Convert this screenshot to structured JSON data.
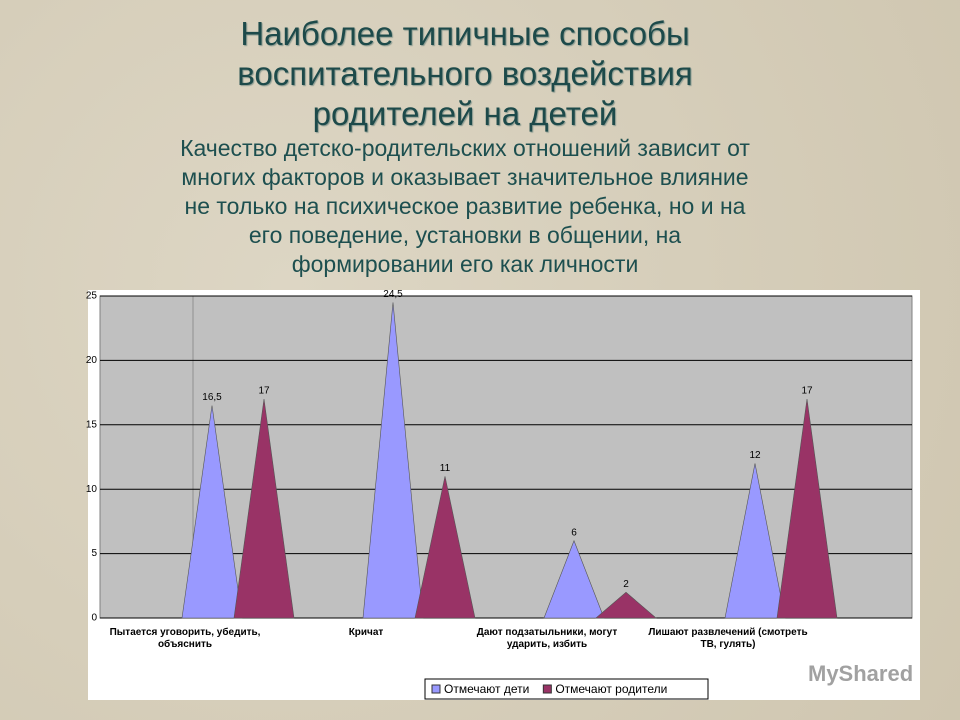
{
  "chart_data": {
    "type": "cone",
    "title": [
      "Наиболее типичные способы",
      "воспитательного воздействия",
      "родителей на детей"
    ],
    "subtitle": [
      "Качество детско-родительских отношений зависит от",
      "многих факторов и оказывает значительное влияние",
      "не только на психическое развитие ребенка, но и на",
      "его поведение, установки в общении, на",
      "формировании его как личности"
    ],
    "categories": [
      "Пытается уговорить, убедить, объяснить",
      "Кричат",
      "Дают подзатыльники, могут ударить, избить",
      "Лишают развлечений (смотреть ТВ, гулять)"
    ],
    "series": [
      {
        "name": "Отмечают дети",
        "color": "#9999ff",
        "values": [
          16.5,
          24.5,
          6,
          12
        ],
        "value_labels": [
          "16,5",
          "24,5",
          "6",
          "12"
        ]
      },
      {
        "name": "Отмечают родители",
        "color": "#993366",
        "values": [
          17,
          11,
          2,
          17
        ]
      }
    ],
    "ylim": [
      0,
      25
    ],
    "yticks": [
      0,
      5,
      10,
      15,
      20,
      25
    ],
    "grid": true,
    "legend": "bottom",
    "watermark": "MyShared"
  }
}
